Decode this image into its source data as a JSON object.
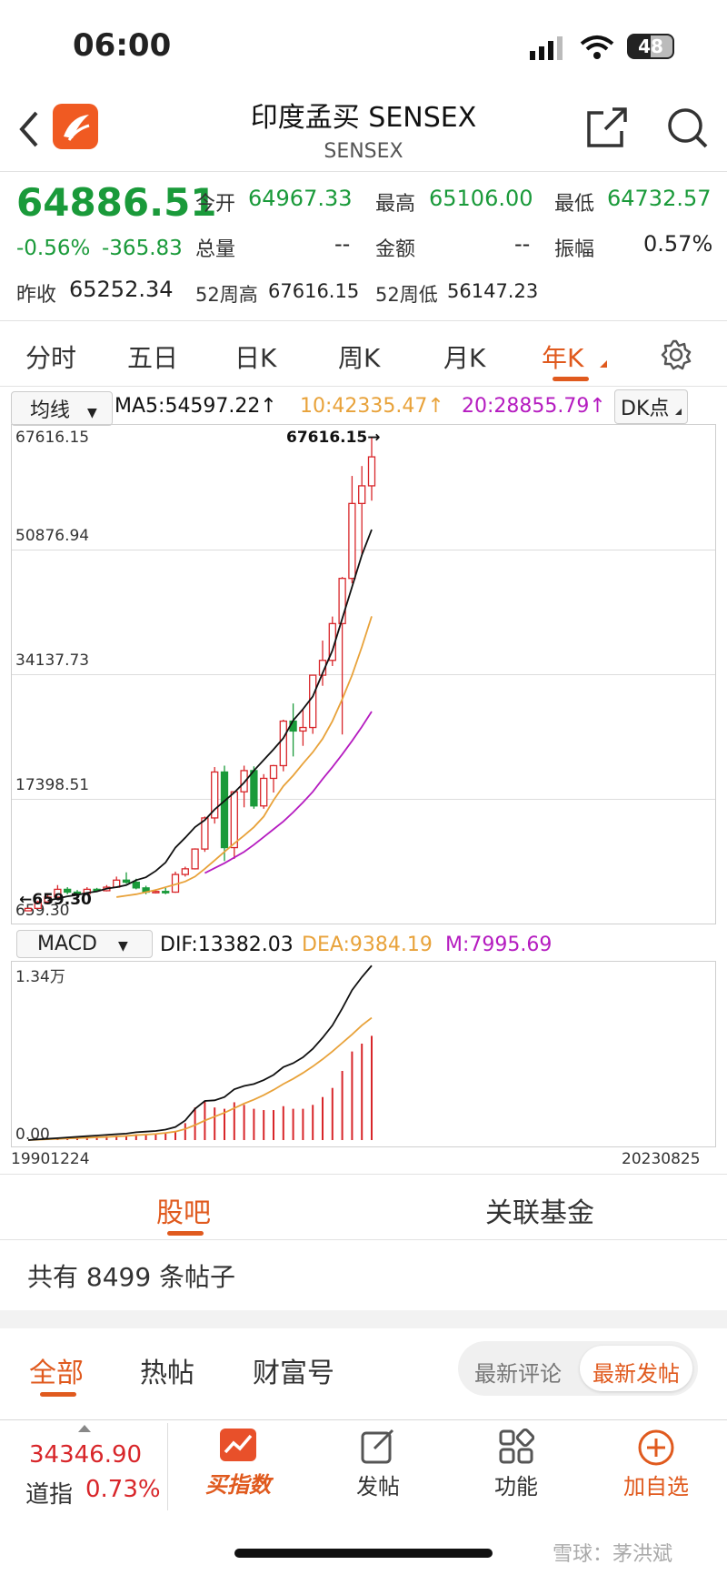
{
  "status": {
    "time": "06:00",
    "battery": "48"
  },
  "header": {
    "title": "印度孟买 SENSEX",
    "subtitle": "SENSEX"
  },
  "quote": {
    "price": "64886.51",
    "change_pct": "-0.56%",
    "change": "-365.83",
    "open_label": "今开",
    "open": "64967.33",
    "high_label": "最高",
    "high": "65106.00",
    "low_label": "最低",
    "low": "64732.57",
    "volume_label": "总量",
    "volume": "--",
    "amount_label": "金额",
    "amount": "--",
    "amplitude_label": "振幅",
    "amplitude": "0.57%",
    "prev_close_label": "昨收",
    "prev_close": "65252.34",
    "wk52_high_label": "52周高",
    "wk52_high": "67616.15",
    "wk52_low_label": "52周低",
    "wk52_low": "56147.23"
  },
  "tabs": [
    "分时",
    "五日",
    "日K",
    "周K",
    "月K",
    "年K"
  ],
  "active_tab": "年K",
  "ma_bar": {
    "selector": "均线",
    "ma5": "MA5:54597.22↑",
    "ma10": "10:42335.47↑",
    "ma20": "20:28855.79↑",
    "dk": "DK点"
  },
  "chart_data": [
    {
      "type": "candlestick",
      "title": "",
      "y_ticks": [
        "67616.15",
        "50876.94",
        "34137.73",
        "17398.51",
        "659.30"
      ],
      "ylim": [
        659.3,
        67616.15
      ],
      "high_annotation": "67616.15→",
      "low_annotation": "←659.30",
      "x_start": "19901224",
      "x_end": "20230825",
      "candles": [
        {
          "o": 660,
          "c": 1000,
          "h": 1100,
          "l": 659
        },
        {
          "o": 1000,
          "c": 1900,
          "h": 2100,
          "l": 950
        },
        {
          "o": 1900,
          "c": 2600,
          "h": 2900,
          "l": 1800
        },
        {
          "o": 2600,
          "c": 3700,
          "h": 4300,
          "l": 2500
        },
        {
          "o": 3700,
          "c": 3300,
          "h": 4000,
          "l": 3000
        },
        {
          "o": 3300,
          "c": 3100,
          "h": 3600,
          "l": 2900
        },
        {
          "o": 3100,
          "c": 3700,
          "h": 4000,
          "l": 3000
        },
        {
          "o": 3700,
          "c": 3500,
          "h": 3900,
          "l": 3300
        },
        {
          "o": 3500,
          "c": 4000,
          "h": 4300,
          "l": 3400
        },
        {
          "o": 4000,
          "c": 5000,
          "h": 5500,
          "l": 3900
        },
        {
          "o": 5000,
          "c": 4700,
          "h": 6100,
          "l": 4500
        },
        {
          "o": 4700,
          "c": 3900,
          "h": 5200,
          "l": 3700
        },
        {
          "o": 3900,
          "c": 3300,
          "h": 4200,
          "l": 3000
        },
        {
          "o": 3300,
          "c": 3400,
          "h": 3700,
          "l": 3100
        },
        {
          "o": 3400,
          "c": 3300,
          "h": 3900,
          "l": 3000
        },
        {
          "o": 3300,
          "c": 5800,
          "h": 6200,
          "l": 3200
        },
        {
          "o": 5800,
          "c": 6600,
          "h": 6900,
          "l": 5500
        },
        {
          "o": 6600,
          "c": 9400,
          "h": 9500,
          "l": 6500
        },
        {
          "o": 9400,
          "c": 13800,
          "h": 14000,
          "l": 9000
        },
        {
          "o": 13800,
          "c": 20300,
          "h": 21000,
          "l": 13000
        },
        {
          "o": 20300,
          "c": 9600,
          "h": 21200,
          "l": 7700
        },
        {
          "o": 9600,
          "c": 17500,
          "h": 17500,
          "l": 8000
        },
        {
          "o": 17500,
          "c": 20500,
          "h": 21200,
          "l": 15300
        },
        {
          "o": 20500,
          "c": 15500,
          "h": 21100,
          "l": 15100
        },
        {
          "o": 15500,
          "c": 19400,
          "h": 20000,
          "l": 15100
        },
        {
          "o": 19400,
          "c": 21200,
          "h": 21300,
          "l": 17400
        },
        {
          "o": 21200,
          "c": 27500,
          "h": 27700,
          "l": 20400
        },
        {
          "o": 27500,
          "c": 26100,
          "h": 30000,
          "l": 22500
        },
        {
          "o": 26100,
          "c": 26600,
          "h": 29100,
          "l": 24000
        },
        {
          "o": 26600,
          "c": 34000,
          "h": 34000,
          "l": 25700
        },
        {
          "o": 34000,
          "c": 36100,
          "h": 38900,
          "l": 32500
        },
        {
          "o": 36100,
          "c": 41300,
          "h": 42300,
          "l": 35300
        },
        {
          "o": 41300,
          "c": 47700,
          "h": 47900,
          "l": 25600
        },
        {
          "o": 47700,
          "c": 58300,
          "h": 62200,
          "l": 47000
        },
        {
          "o": 58300,
          "c": 60800,
          "h": 63600,
          "l": 50900
        },
        {
          "o": 60800,
          "c": 64900,
          "h": 67616,
          "l": 58700
        }
      ],
      "ma5": [
        2100,
        2400,
        2700,
        2900,
        3200,
        3400,
        3800,
        4000,
        4300,
        5000,
        5400,
        6300,
        7500,
        9600,
        11000,
        12500,
        13500,
        15000,
        16200,
        17400,
        18800,
        20500,
        22000,
        23500,
        25100,
        27600,
        29200,
        31000,
        34300,
        37500,
        42000,
        46500,
        51000,
        54597
      ],
      "ma10": [
        2600,
        2800,
        3000,
        3300,
        3600,
        4000,
        4400,
        4800,
        5500,
        6600,
        7800,
        9000,
        10200,
        11300,
        12500,
        14000,
        16300,
        18300,
        19800,
        21500,
        23100,
        25000,
        27500,
        30600,
        34000,
        38000,
        42335
      ],
      "ma20": [
        6000,
        6700,
        7400,
        8200,
        9000,
        10000,
        11100,
        12200,
        13300,
        14600,
        16000,
        17500,
        19300,
        21000,
        22800,
        24700,
        26700,
        28855
      ]
    },
    {
      "type": "macd",
      "title": "",
      "selector": "MACD",
      "dif_label": "DIF:13382.03",
      "dea_label": "DEA:9384.19",
      "m_label": "M:7995.69",
      "y_ticks": [
        "1.34万",
        "0.00"
      ],
      "ylim": [
        0,
        13400
      ],
      "dif": [
        0,
        50,
        100,
        150,
        200,
        250,
        300,
        350,
        400,
        450,
        500,
        600,
        650,
        700,
        800,
        1000,
        1500,
        2400,
        3000,
        3050,
        3300,
        3900,
        4150,
        4300,
        4600,
        5000,
        5600,
        5900,
        6350,
        7000,
        7850,
        8800,
        10100,
        11500,
        12500,
        13382
      ],
      "dea": [
        0,
        30,
        60,
        90,
        120,
        150,
        180,
        210,
        240,
        280,
        320,
        380,
        420,
        470,
        550,
        650,
        850,
        1150,
        1500,
        1800,
        2100,
        2450,
        2800,
        3100,
        3450,
        3850,
        4300,
        4700,
        5150,
        5650,
        6200,
        6800,
        7450,
        8100,
        8800,
        9384
      ],
      "m": [
        0,
        40,
        80,
        120,
        160,
        200,
        240,
        280,
        320,
        340,
        360,
        440,
        460,
        460,
        500,
        700,
        1300,
        2500,
        3000,
        2500,
        2400,
        2900,
        2700,
        2400,
        2300,
        2300,
        2600,
        2400,
        2400,
        2700,
        3300,
        4000,
        5300,
        6800,
        7400,
        7995
      ]
    }
  ],
  "community": {
    "tabs": [
      "股吧",
      "关联基金"
    ],
    "post_count": "共有 8499 条帖子",
    "filters": [
      "全部",
      "热帖",
      "财富号"
    ],
    "sort_options": [
      "最新评论",
      "最新发帖"
    ]
  },
  "bottom": {
    "index_value": "34346.90",
    "index_name": "道指",
    "index_change": "0.73%",
    "items": [
      "买指数",
      "发帖",
      "功能",
      "加自选"
    ]
  },
  "watermark": "雪球：茅洪斌",
  "colors": {
    "up": "#d8262a",
    "down": "#1a9a3a",
    "accent": "#e05a1e",
    "ma5": "#111111",
    "ma10": "#e8a23a",
    "ma20": "#b51cc0"
  }
}
